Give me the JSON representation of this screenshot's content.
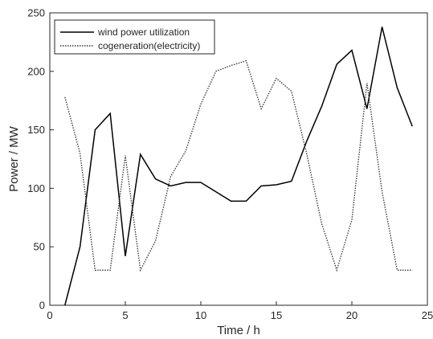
{
  "chart_data": {
    "type": "line",
    "xlabel": "Time / h",
    "ylabel": "Power / MW",
    "xlim": [
      0,
      25
    ],
    "ylim": [
      0,
      250
    ],
    "xticks": [
      0,
      5,
      10,
      15,
      20,
      25
    ],
    "yticks": [
      0,
      50,
      100,
      150,
      200,
      250
    ],
    "grid": false,
    "legend_position": "top-left",
    "x": [
      1,
      2,
      3,
      4,
      5,
      6,
      7,
      8,
      9,
      10,
      11,
      12,
      13,
      14,
      15,
      16,
      17,
      18,
      19,
      20,
      21,
      22,
      23,
      24
    ],
    "series": [
      {
        "name": "wind power utilization",
        "style": "solid",
        "color": "#000000",
        "values": [
          0,
          50,
          150,
          164,
          42,
          129,
          108,
          102,
          105,
          105,
          97,
          89,
          89,
          102,
          103,
          106,
          140,
          170,
          206,
          218,
          168,
          238,
          186,
          153
        ]
      },
      {
        "name": "cogeneration(electricity)",
        "style": "dotted",
        "color": "#333333",
        "values": [
          178,
          130,
          30,
          30,
          128,
          30,
          55,
          110,
          132,
          172,
          200,
          205,
          209,
          168,
          194,
          183,
          130,
          70,
          30,
          73,
          190,
          97,
          30,
          30
        ]
      }
    ]
  }
}
